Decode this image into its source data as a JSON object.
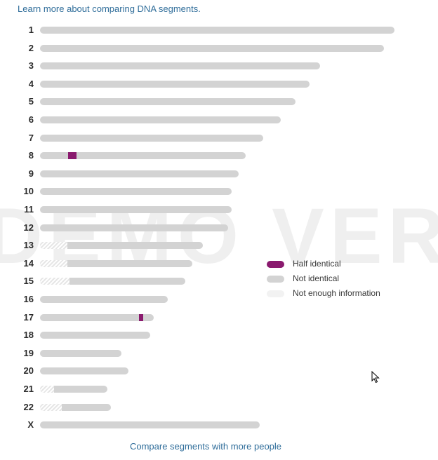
{
  "learn_link": "Learn more about comparing DNA segments.",
  "watermark": "DEMO VER",
  "compare_link": "Compare segments with more people",
  "colors": {
    "half_identical": "#8a1a6e",
    "not_identical": "#d3d3d3",
    "not_enough_info": "#f2f2f2",
    "link": "#2f6d9a"
  },
  "legend": [
    {
      "key": "half_identical",
      "label": "Half identical"
    },
    {
      "key": "not_identical",
      "label": "Not identical"
    },
    {
      "key": "not_enough_info",
      "label": "Not enough information"
    }
  ],
  "chart_data": {
    "type": "bar",
    "categories": [
      "1",
      "2",
      "3",
      "4",
      "5",
      "6",
      "7",
      "8",
      "9",
      "10",
      "11",
      "12",
      "13",
      "14",
      "15",
      "16",
      "17",
      "18",
      "19",
      "20",
      "21",
      "22",
      "X"
    ],
    "lengths": [
      1.0,
      0.97,
      0.79,
      0.76,
      0.72,
      0.68,
      0.63,
      0.58,
      0.56,
      0.54,
      0.54,
      0.53,
      0.46,
      0.43,
      0.41,
      0.36,
      0.32,
      0.31,
      0.23,
      0.25,
      0.19,
      0.2,
      0.62
    ],
    "not_enough_info": [
      0,
      0,
      0,
      0,
      0,
      0,
      0,
      0,
      0,
      0,
      0,
      0,
      0.078,
      0.078,
      0.083,
      0,
      0,
      0,
      0,
      0,
      0.04,
      0.062,
      0
    ],
    "half_identical_segments": [
      {
        "chromosome": "8",
        "start": 0.08,
        "end": 0.102
      },
      {
        "chromosome": "17",
        "start": 0.28,
        "end": 0.292
      }
    ]
  }
}
